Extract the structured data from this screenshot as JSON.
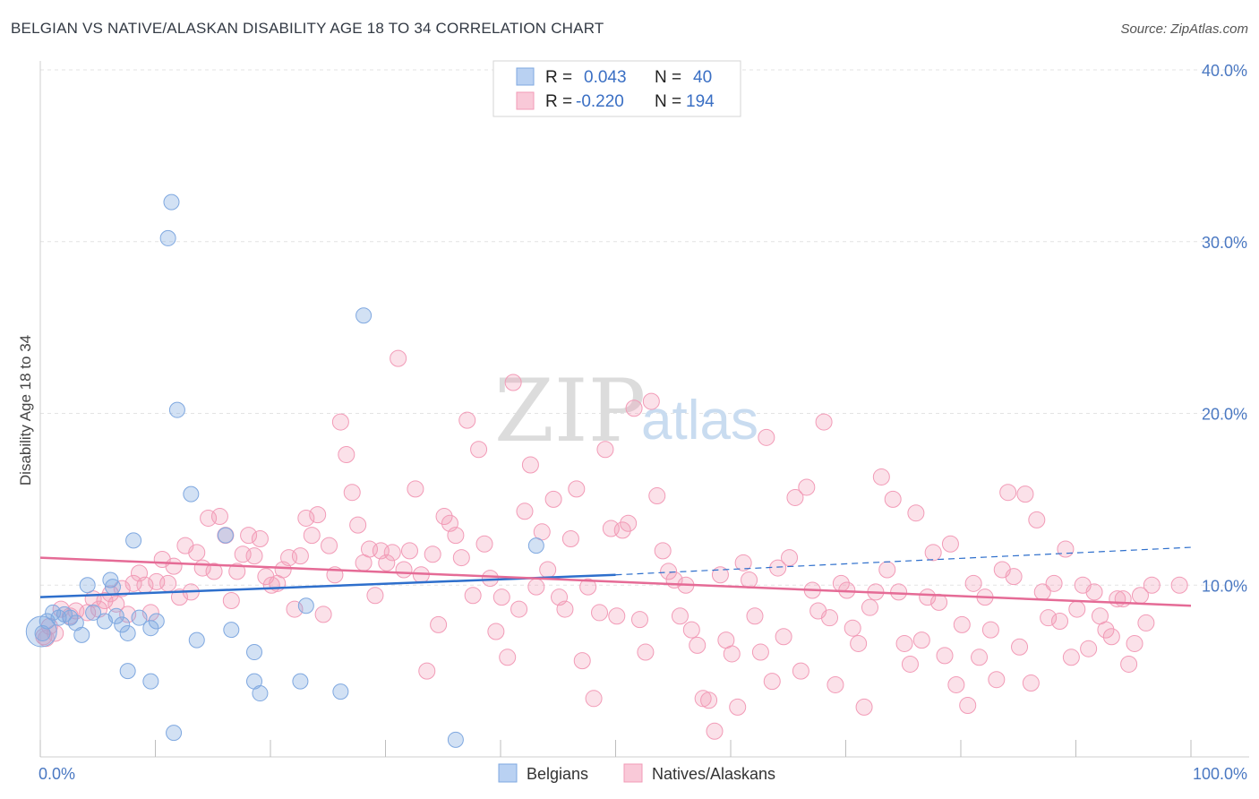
{
  "title": "BELGIAN VS NATIVE/ALASKAN DISABILITY AGE 18 TO 34 CORRELATION CHART",
  "source": "Source: ZipAtlas.com",
  "watermark": {
    "part1": "ZIP",
    "part2": "atlas"
  },
  "legend": {
    "r_label": "R =",
    "n_label": "N =",
    "rows": [
      {
        "r": "0.043",
        "n": "40"
      },
      {
        "r": "-0.220",
        "n": "194"
      }
    ]
  },
  "bottom_legend": [
    "Belgians",
    "Natives/Alaskans"
  ],
  "chart_data": {
    "type": "scatter",
    "title": "BELGIAN VS NATIVE/ALASKAN DISABILITY AGE 18 TO 34 CORRELATION CHART",
    "xlabel": "",
    "ylabel": "Disability Age 18 to 34",
    "xlim": [
      0,
      100
    ],
    "ylim": [
      0,
      40
    ],
    "x_tick_labels": [
      "0.0%",
      "100.0%"
    ],
    "y_ticks": [
      10,
      20,
      30,
      40
    ],
    "y_tick_labels": [
      "10.0%",
      "20.0%",
      "30.0%",
      "40.0%"
    ],
    "colors": {
      "belgians": "#7fa8e0",
      "natives": "#f29bb7",
      "belgian_line": "#2e6fcc",
      "native_line": "#e56b96"
    },
    "series": [
      {
        "name": "Belgians",
        "r": 0.043,
        "n": 40,
        "trend": {
          "x0": 0,
          "y0": 9.3,
          "x1": 50,
          "y1": 10.6,
          "dash_to_x": 100,
          "dash_to_y": 12.2
        },
        "points": [
          [
            0.2,
            7.2
          ],
          [
            0.6,
            7.9
          ],
          [
            1.1,
            8.4
          ],
          [
            1.6,
            8.1
          ],
          [
            2.1,
            8.3
          ],
          [
            2.6,
            8.1
          ],
          [
            3.1,
            7.8
          ],
          [
            3.6,
            7.1
          ],
          [
            4.1,
            10.0
          ],
          [
            4.6,
            8.4
          ],
          [
            5.6,
            7.9
          ],
          [
            6.1,
            10.3
          ],
          [
            6.3,
            9.9
          ],
          [
            6.6,
            8.2
          ],
          [
            7.1,
            7.7
          ],
          [
            7.6,
            5.0
          ],
          [
            7.6,
            7.2
          ],
          [
            8.1,
            12.6
          ],
          [
            8.6,
            8.1
          ],
          [
            9.6,
            7.5
          ],
          [
            9.6,
            4.4
          ],
          [
            10.1,
            7.9
          ],
          [
            11.1,
            30.2
          ],
          [
            11.4,
            32.3
          ],
          [
            11.6,
            1.4
          ],
          [
            11.9,
            20.2
          ],
          [
            13.1,
            15.3
          ],
          [
            13.6,
            6.8
          ],
          [
            16.1,
            12.9
          ],
          [
            16.6,
            7.4
          ],
          [
            18.6,
            6.1
          ],
          [
            18.6,
            4.4
          ],
          [
            19.1,
            3.7
          ],
          [
            22.6,
            4.4
          ],
          [
            23.1,
            8.8
          ],
          [
            26.1,
            3.8
          ],
          [
            28.1,
            25.7
          ],
          [
            36.1,
            1.0
          ],
          [
            43.1,
            12.3
          ],
          [
            0.1,
            7.3
          ]
        ]
      },
      {
        "name": "Natives/Alaskans",
        "r": -0.22,
        "n": 194,
        "trend": {
          "x0": 0,
          "y0": 11.6,
          "x1": 100,
          "y1": 8.8
        },
        "points": [
          [
            0.3,
            7.0
          ],
          [
            0.8,
            7.6
          ],
          [
            1.3,
            7.2
          ],
          [
            1.8,
            8.6
          ],
          [
            2.6,
            8.2
          ],
          [
            3.1,
            8.5
          ],
          [
            4.1,
            8.4
          ],
          [
            4.6,
            9.2
          ],
          [
            5.1,
            8.6
          ],
          [
            5.6,
            9.1
          ],
          [
            6.1,
            9.5
          ],
          [
            6.6,
            8.9
          ],
          [
            7.1,
            9.8
          ],
          [
            7.6,
            8.3
          ],
          [
            8.1,
            10.1
          ],
          [
            8.6,
            10.7
          ],
          [
            9.1,
            10.0
          ],
          [
            9.6,
            8.4
          ],
          [
            10.1,
            10.2
          ],
          [
            10.6,
            11.5
          ],
          [
            11.1,
            10.1
          ],
          [
            11.6,
            11.1
          ],
          [
            12.1,
            9.3
          ],
          [
            12.6,
            12.3
          ],
          [
            13.1,
            9.6
          ],
          [
            13.6,
            11.9
          ],
          [
            14.1,
            11.0
          ],
          [
            14.6,
            13.9
          ],
          [
            15.1,
            10.8
          ],
          [
            15.6,
            14.0
          ],
          [
            16.1,
            12.9
          ],
          [
            16.6,
            9.1
          ],
          [
            17.1,
            10.8
          ],
          [
            17.6,
            11.8
          ],
          [
            18.1,
            12.9
          ],
          [
            18.6,
            11.7
          ],
          [
            19.1,
            12.7
          ],
          [
            19.6,
            10.5
          ],
          [
            20.1,
            10.0
          ],
          [
            20.6,
            10.1
          ],
          [
            21.1,
            10.9
          ],
          [
            21.6,
            11.6
          ],
          [
            22.1,
            8.6
          ],
          [
            22.6,
            11.7
          ],
          [
            23.1,
            13.9
          ],
          [
            23.6,
            12.9
          ],
          [
            24.1,
            14.1
          ],
          [
            24.6,
            8.3
          ],
          [
            25.1,
            12.3
          ],
          [
            25.6,
            10.6
          ],
          [
            26.1,
            19.5
          ],
          [
            26.6,
            17.6
          ],
          [
            27.1,
            15.4
          ],
          [
            27.6,
            13.5
          ],
          [
            28.1,
            11.3
          ],
          [
            28.6,
            12.1
          ],
          [
            29.1,
            9.4
          ],
          [
            29.6,
            12.0
          ],
          [
            30.1,
            11.3
          ],
          [
            30.6,
            11.9
          ],
          [
            31.1,
            23.2
          ],
          [
            31.6,
            10.9
          ],
          [
            32.1,
            12.0
          ],
          [
            32.6,
            15.6
          ],
          [
            33.1,
            10.6
          ],
          [
            33.6,
            5.0
          ],
          [
            34.1,
            11.8
          ],
          [
            34.6,
            7.7
          ],
          [
            35.1,
            14.0
          ],
          [
            35.6,
            13.6
          ],
          [
            36.1,
            12.9
          ],
          [
            36.6,
            11.6
          ],
          [
            37.1,
            19.6
          ],
          [
            37.6,
            9.4
          ],
          [
            38.1,
            17.9
          ],
          [
            38.6,
            12.4
          ],
          [
            39.1,
            10.4
          ],
          [
            39.6,
            7.3
          ],
          [
            40.1,
            9.3
          ],
          [
            40.6,
            5.8
          ],
          [
            41.1,
            21.8
          ],
          [
            41.6,
            8.6
          ],
          [
            42.1,
            14.3
          ],
          [
            42.6,
            17.0
          ],
          [
            43.1,
            9.9
          ],
          [
            43.6,
            13.1
          ],
          [
            44.1,
            10.9
          ],
          [
            44.6,
            15.0
          ],
          [
            45.1,
            9.3
          ],
          [
            45.6,
            8.6
          ],
          [
            46.1,
            12.7
          ],
          [
            46.6,
            15.6
          ],
          [
            47.1,
            5.6
          ],
          [
            47.6,
            9.9
          ],
          [
            48.1,
            3.4
          ],
          [
            48.6,
            8.4
          ],
          [
            49.1,
            17.9
          ],
          [
            49.6,
            13.3
          ],
          [
            50.1,
            8.2
          ],
          [
            50.6,
            13.2
          ],
          [
            51.1,
            13.6
          ],
          [
            51.6,
            20.3
          ],
          [
            52.1,
            8.0
          ],
          [
            52.6,
            6.1
          ],
          [
            53.1,
            20.7
          ],
          [
            53.6,
            15.2
          ],
          [
            54.1,
            12.0
          ],
          [
            54.6,
            10.8
          ],
          [
            55.1,
            10.3
          ],
          [
            55.6,
            8.2
          ],
          [
            56.1,
            10.0
          ],
          [
            56.6,
            7.4
          ],
          [
            57.1,
            6.5
          ],
          [
            57.6,
            3.4
          ],
          [
            58.1,
            3.3
          ],
          [
            58.6,
            1.5
          ],
          [
            59.1,
            10.6
          ],
          [
            59.6,
            6.8
          ],
          [
            60.1,
            6.0
          ],
          [
            60.6,
            2.9
          ],
          [
            61.1,
            11.3
          ],
          [
            61.6,
            10.3
          ],
          [
            62.1,
            8.2
          ],
          [
            62.6,
            6.1
          ],
          [
            63.1,
            18.6
          ],
          [
            63.6,
            4.4
          ],
          [
            64.1,
            11.0
          ],
          [
            64.6,
            7.0
          ],
          [
            65.1,
            11.6
          ],
          [
            65.6,
            15.1
          ],
          [
            66.1,
            5.0
          ],
          [
            66.6,
            15.7
          ],
          [
            67.1,
            9.7
          ],
          [
            67.6,
            8.5
          ],
          [
            68.1,
            19.5
          ],
          [
            68.6,
            8.1
          ],
          [
            69.1,
            4.2
          ],
          [
            69.6,
            10.1
          ],
          [
            70.1,
            9.7
          ],
          [
            70.6,
            7.5
          ],
          [
            71.1,
            6.6
          ],
          [
            71.6,
            2.9
          ],
          [
            72.1,
            8.7
          ],
          [
            72.6,
            9.6
          ],
          [
            73.1,
            16.3
          ],
          [
            73.6,
            10.9
          ],
          [
            74.1,
            15.0
          ],
          [
            74.6,
            9.6
          ],
          [
            75.1,
            6.6
          ],
          [
            75.6,
            5.4
          ],
          [
            76.1,
            14.2
          ],
          [
            76.6,
            6.8
          ],
          [
            77.1,
            9.3
          ],
          [
            77.6,
            11.9
          ],
          [
            78.1,
            9.0
          ],
          [
            78.6,
            5.9
          ],
          [
            79.1,
            12.4
          ],
          [
            79.6,
            4.2
          ],
          [
            80.1,
            7.7
          ],
          [
            80.6,
            3.0
          ],
          [
            81.1,
            10.1
          ],
          [
            81.6,
            5.8
          ],
          [
            82.1,
            9.3
          ],
          [
            82.6,
            7.4
          ],
          [
            83.1,
            4.5
          ],
          [
            83.6,
            10.9
          ],
          [
            84.1,
            15.4
          ],
          [
            84.6,
            10.5
          ],
          [
            85.1,
            6.4
          ],
          [
            85.6,
            15.3
          ],
          [
            86.1,
            4.3
          ],
          [
            86.6,
            13.8
          ],
          [
            87.1,
            9.6
          ],
          [
            87.6,
            8.1
          ],
          [
            88.1,
            10.1
          ],
          [
            88.6,
            7.9
          ],
          [
            89.1,
            12.1
          ],
          [
            89.6,
            5.8
          ],
          [
            90.1,
            8.6
          ],
          [
            90.6,
            10.0
          ],
          [
            91.1,
            6.3
          ],
          [
            91.6,
            9.6
          ],
          [
            92.1,
            8.2
          ],
          [
            92.6,
            7.4
          ],
          [
            93.1,
            7.0
          ],
          [
            93.6,
            9.2
          ],
          [
            94.1,
            9.2
          ],
          [
            94.6,
            5.4
          ],
          [
            95.1,
            6.6
          ],
          [
            95.6,
            9.4
          ],
          [
            96.1,
            7.8
          ],
          [
            96.6,
            10.0
          ],
          [
            0.5,
            6.9
          ],
          [
            99.0,
            10.0
          ]
        ]
      }
    ]
  }
}
